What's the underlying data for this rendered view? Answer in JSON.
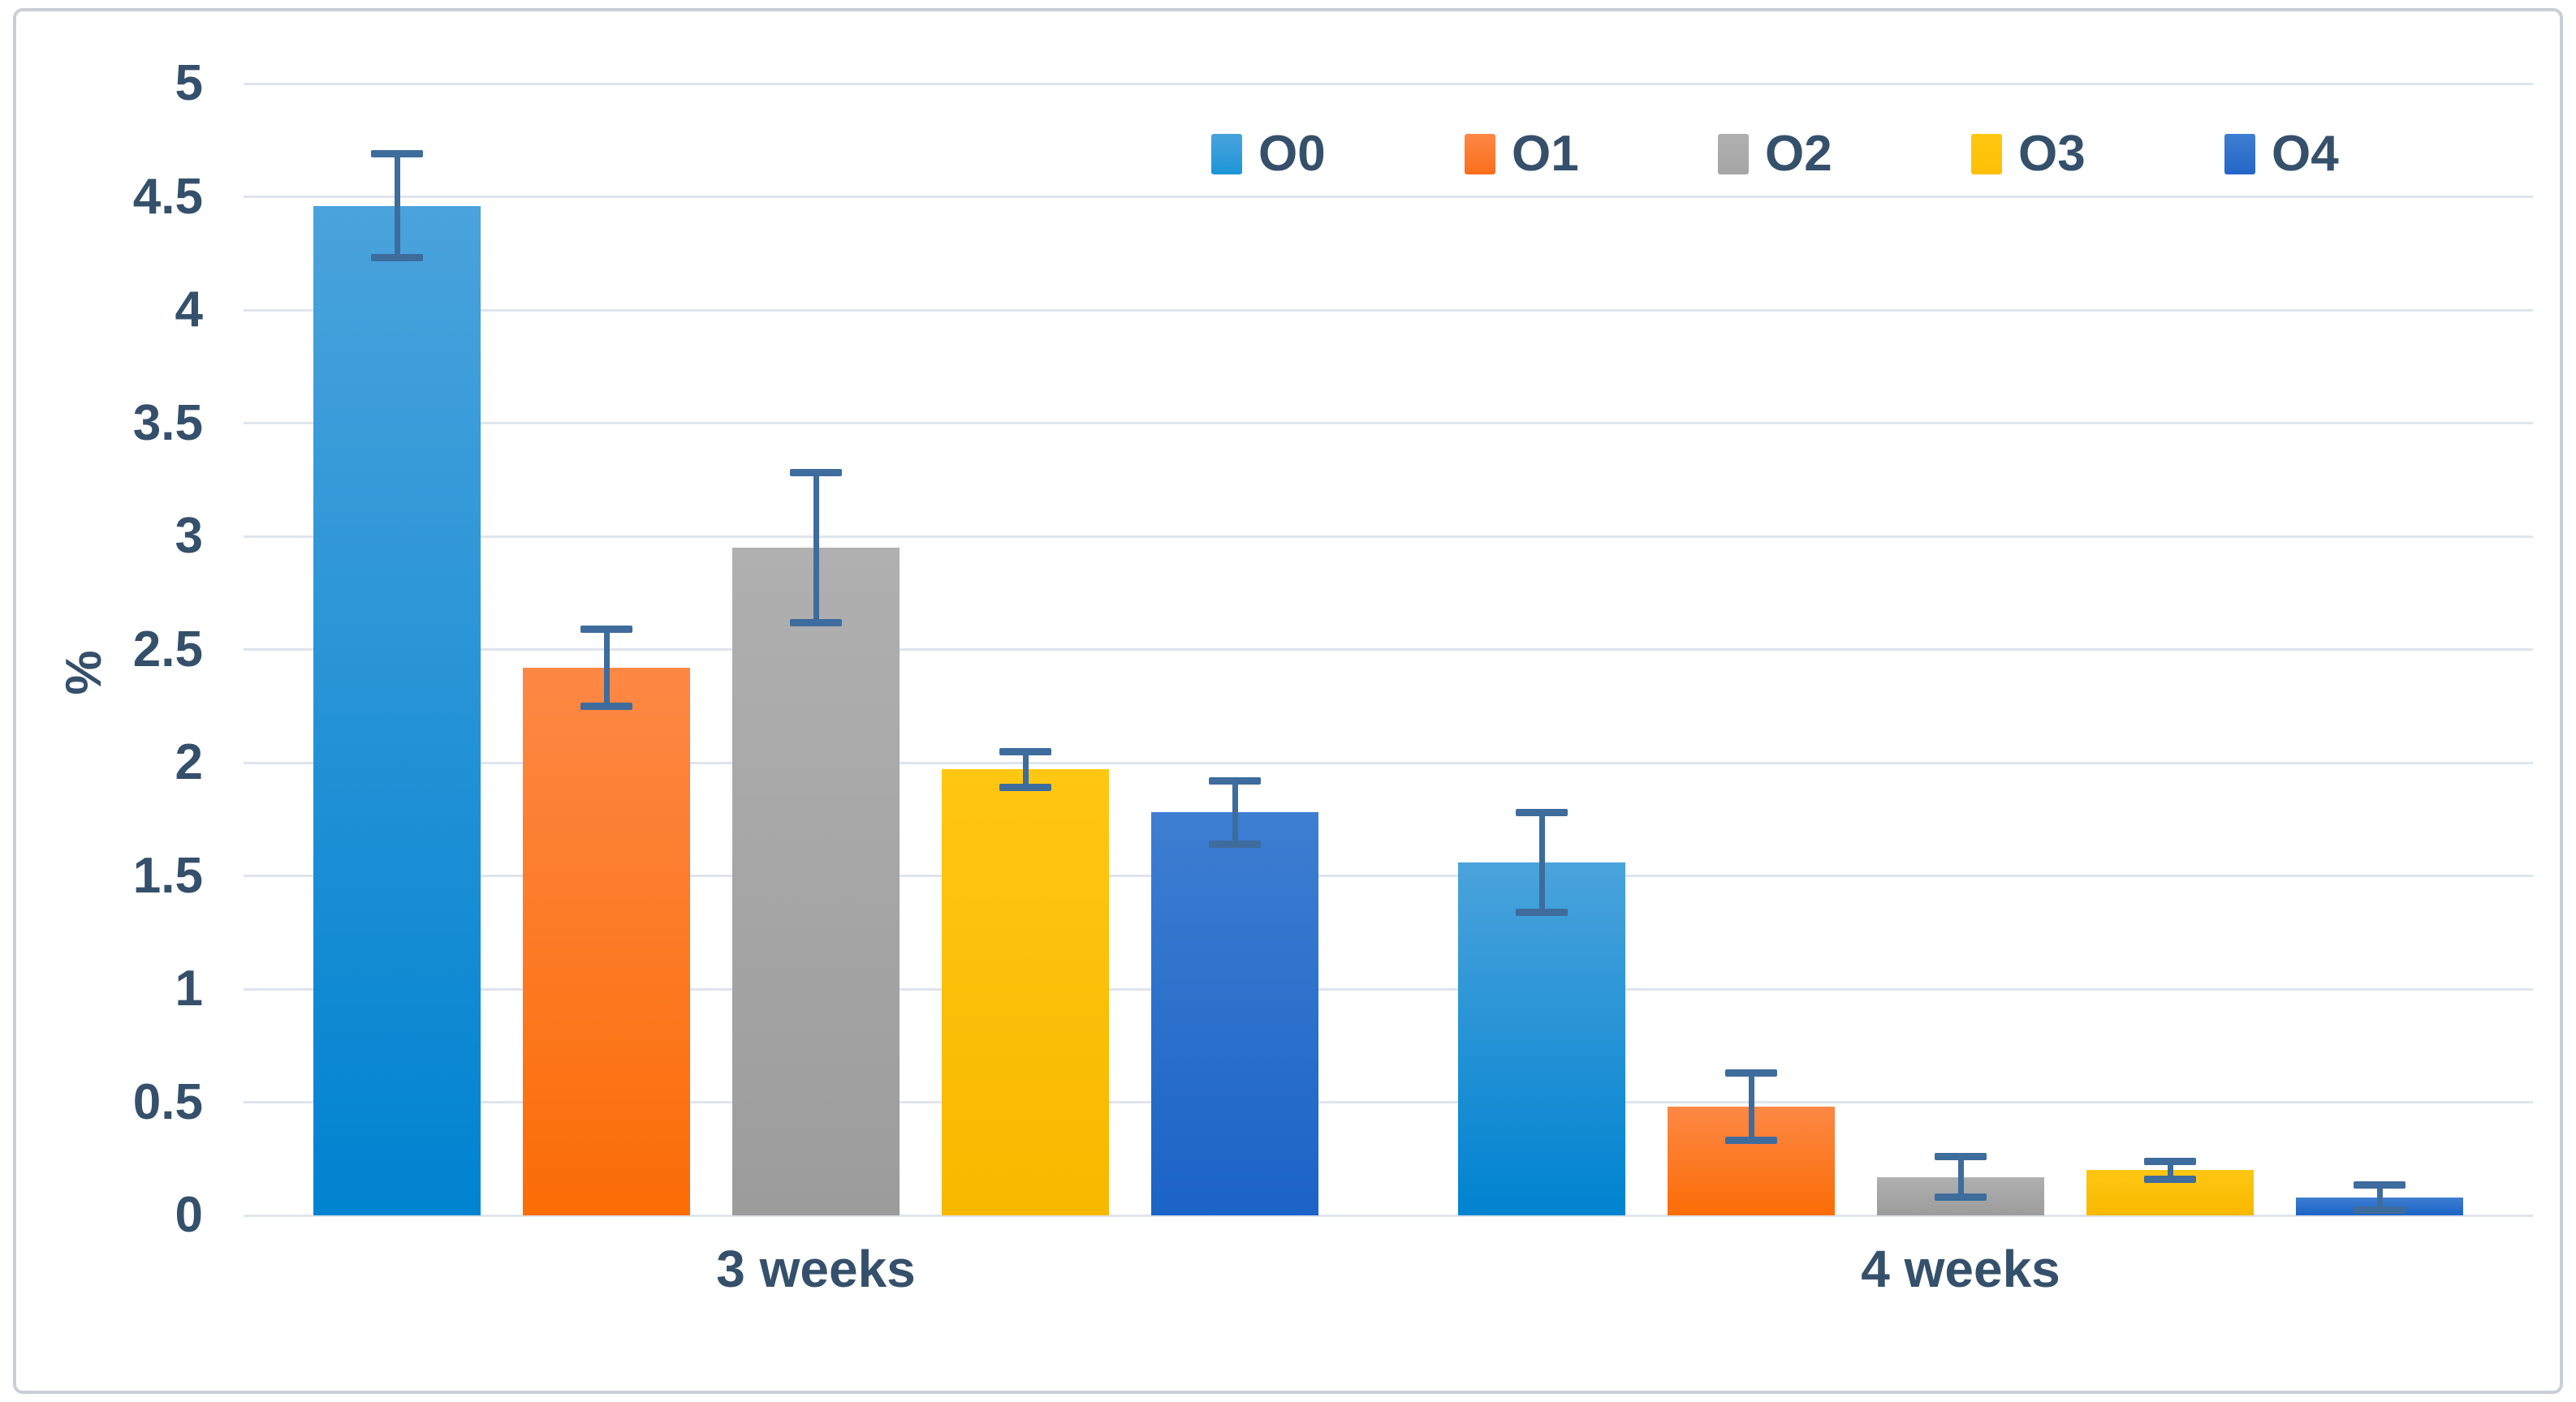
{
  "figure": {
    "type_note": "static scientific bar chart figure",
    "frame_border_color": "#c9cfd7",
    "background_color": "#ffffff"
  },
  "chart_data": {
    "type": "bar",
    "title": "",
    "xlabel": "",
    "ylabel": "%",
    "ylim": [
      0,
      5
    ],
    "grid": true,
    "gridline_color": "#dfe5ed",
    "error_bar_color": "#3e6c9d",
    "text_color": "#35506b",
    "legend_position": "top-right",
    "y_tick_labels": [
      "5",
      "4.5",
      "4",
      "3.5",
      "3",
      "2.5",
      "2",
      "1.5",
      "1",
      "0.5",
      "0"
    ],
    "y_tick_values": [
      5,
      4.5,
      4,
      3.5,
      3,
      2.5,
      2,
      1.5,
      1,
      0.5,
      0
    ],
    "categories": [
      "3 weeks",
      "4 weeks"
    ],
    "series": [
      {
        "name": "O0",
        "legend_color": "#1d95d8",
        "color_top": "#4aa3dc",
        "color_bottom": "#0083d0",
        "values": [
          4.46,
          1.56
        ],
        "errors": [
          0.23,
          0.22
        ]
      },
      {
        "name": "O1",
        "legend_color": "#fa6e1c",
        "color_top": "#fd8845",
        "color_bottom": "#fb6d06",
        "values": [
          2.42,
          0.48
        ],
        "errors": [
          0.17,
          0.15
        ]
      },
      {
        "name": "O2",
        "legend_color": "#a5a5a5",
        "color_top": "#b0b0b0",
        "color_bottom": "#9c9c9c",
        "values": [
          2.95,
          0.17
        ],
        "errors": [
          0.33,
          0.09
        ]
      },
      {
        "name": "O3",
        "legend_color": "#ffc003",
        "color_top": "#ffc712",
        "color_bottom": "#f8b800",
        "values": [
          1.97,
          0.2
        ],
        "errors": [
          0.08,
          0.04
        ]
      },
      {
        "name": "O4",
        "legend_color": "#2466c8",
        "color_top": "#3e7ed2",
        "color_bottom": "#1b63c6",
        "values": [
          1.78,
          0.08
        ],
        "errors": [
          0.14,
          0.055
        ]
      }
    ]
  }
}
